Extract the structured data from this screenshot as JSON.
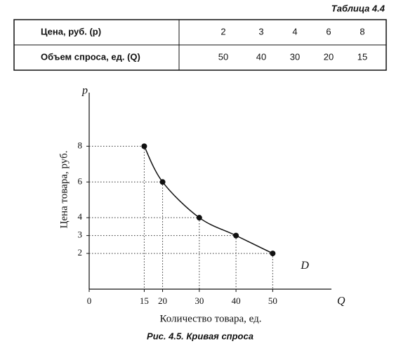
{
  "table": {
    "caption": "Таблица 4.4",
    "rows": [
      {
        "label": "Цена, руб. (p)",
        "values": [
          2,
          3,
          4,
          6,
          8
        ]
      },
      {
        "label": "Объем спроса, ед. (Q)",
        "values": [
          50,
          40,
          30,
          20,
          15
        ]
      }
    ]
  },
  "chart_data": {
    "type": "line",
    "x_label": "Количество товара, ед.",
    "y_label": "Цена товара, руб.",
    "x_axis_letter": "Q",
    "y_axis_letter": "p",
    "curve_label": "D",
    "x": [
      15,
      20,
      30,
      40,
      50
    ],
    "values": [
      8,
      6,
      4,
      3,
      2
    ],
    "color": "#111111",
    "xlim": [
      0,
      66
    ],
    "ylim": [
      0,
      11
    ],
    "xticks": [
      0,
      15,
      20,
      30,
      40,
      50
    ],
    "yticks": [
      2,
      3,
      4,
      6,
      8
    ],
    "caption": "Рис. 4.5. Кривая спроса"
  }
}
